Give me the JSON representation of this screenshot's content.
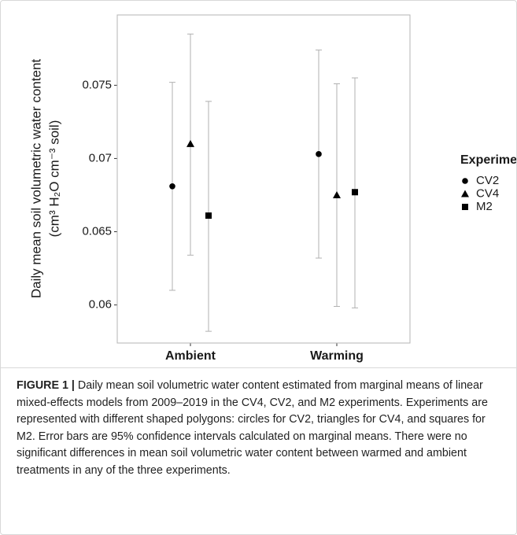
{
  "chart_data": {
    "type": "dotplot",
    "y_label": [
      "Daily mean soil volumetric water content",
      "(cm³ H₂O cm⁻³ soil)"
    ],
    "categories": [
      "Ambient",
      "Warming"
    ],
    "legend_title": "Experiment",
    "series": [
      {
        "name": "CV2",
        "shape": "circle",
        "color": "#000000",
        "values": [
          0.0681,
          0.0703
        ],
        "lower": [
          0.061,
          0.0632
        ],
        "upper": [
          0.0752,
          0.0774
        ]
      },
      {
        "name": "CV4",
        "shape": "triangle",
        "color": "#000000",
        "values": [
          0.071,
          0.0675
        ],
        "lower": [
          0.0634,
          0.0599
        ],
        "upper": [
          0.0785,
          0.0751
        ]
      },
      {
        "name": "M2",
        "shape": "square",
        "color": "#000000",
        "values": [
          0.0661,
          0.0677
        ],
        "lower": [
          0.0582,
          0.0598
        ],
        "upper": [
          0.0739,
          0.0755
        ]
      }
    ],
    "ylim": [
      0.0574,
      0.0798
    ],
    "yticks": [
      0.06,
      0.065,
      0.07,
      0.075
    ],
    "grid": true,
    "minor_grid": true,
    "errorbar_color": "#b0b0b0",
    "caption_label": "FIGURE 1 |",
    "caption": "Daily mean soil volumetric water content estimated from marginal means of linear mixed-effects models from 2009–2019 in the CV4, CV2, and M2 experiments. Experiments are represented with different shaped polygons: circles for CV2, triangles for CV4, and squares for M2. Error bars are 95% confidence intervals calculated on marginal means. There were no significant differences in mean soil volumetric water content between warmed and ambient treatments in any of the three experiments."
  }
}
